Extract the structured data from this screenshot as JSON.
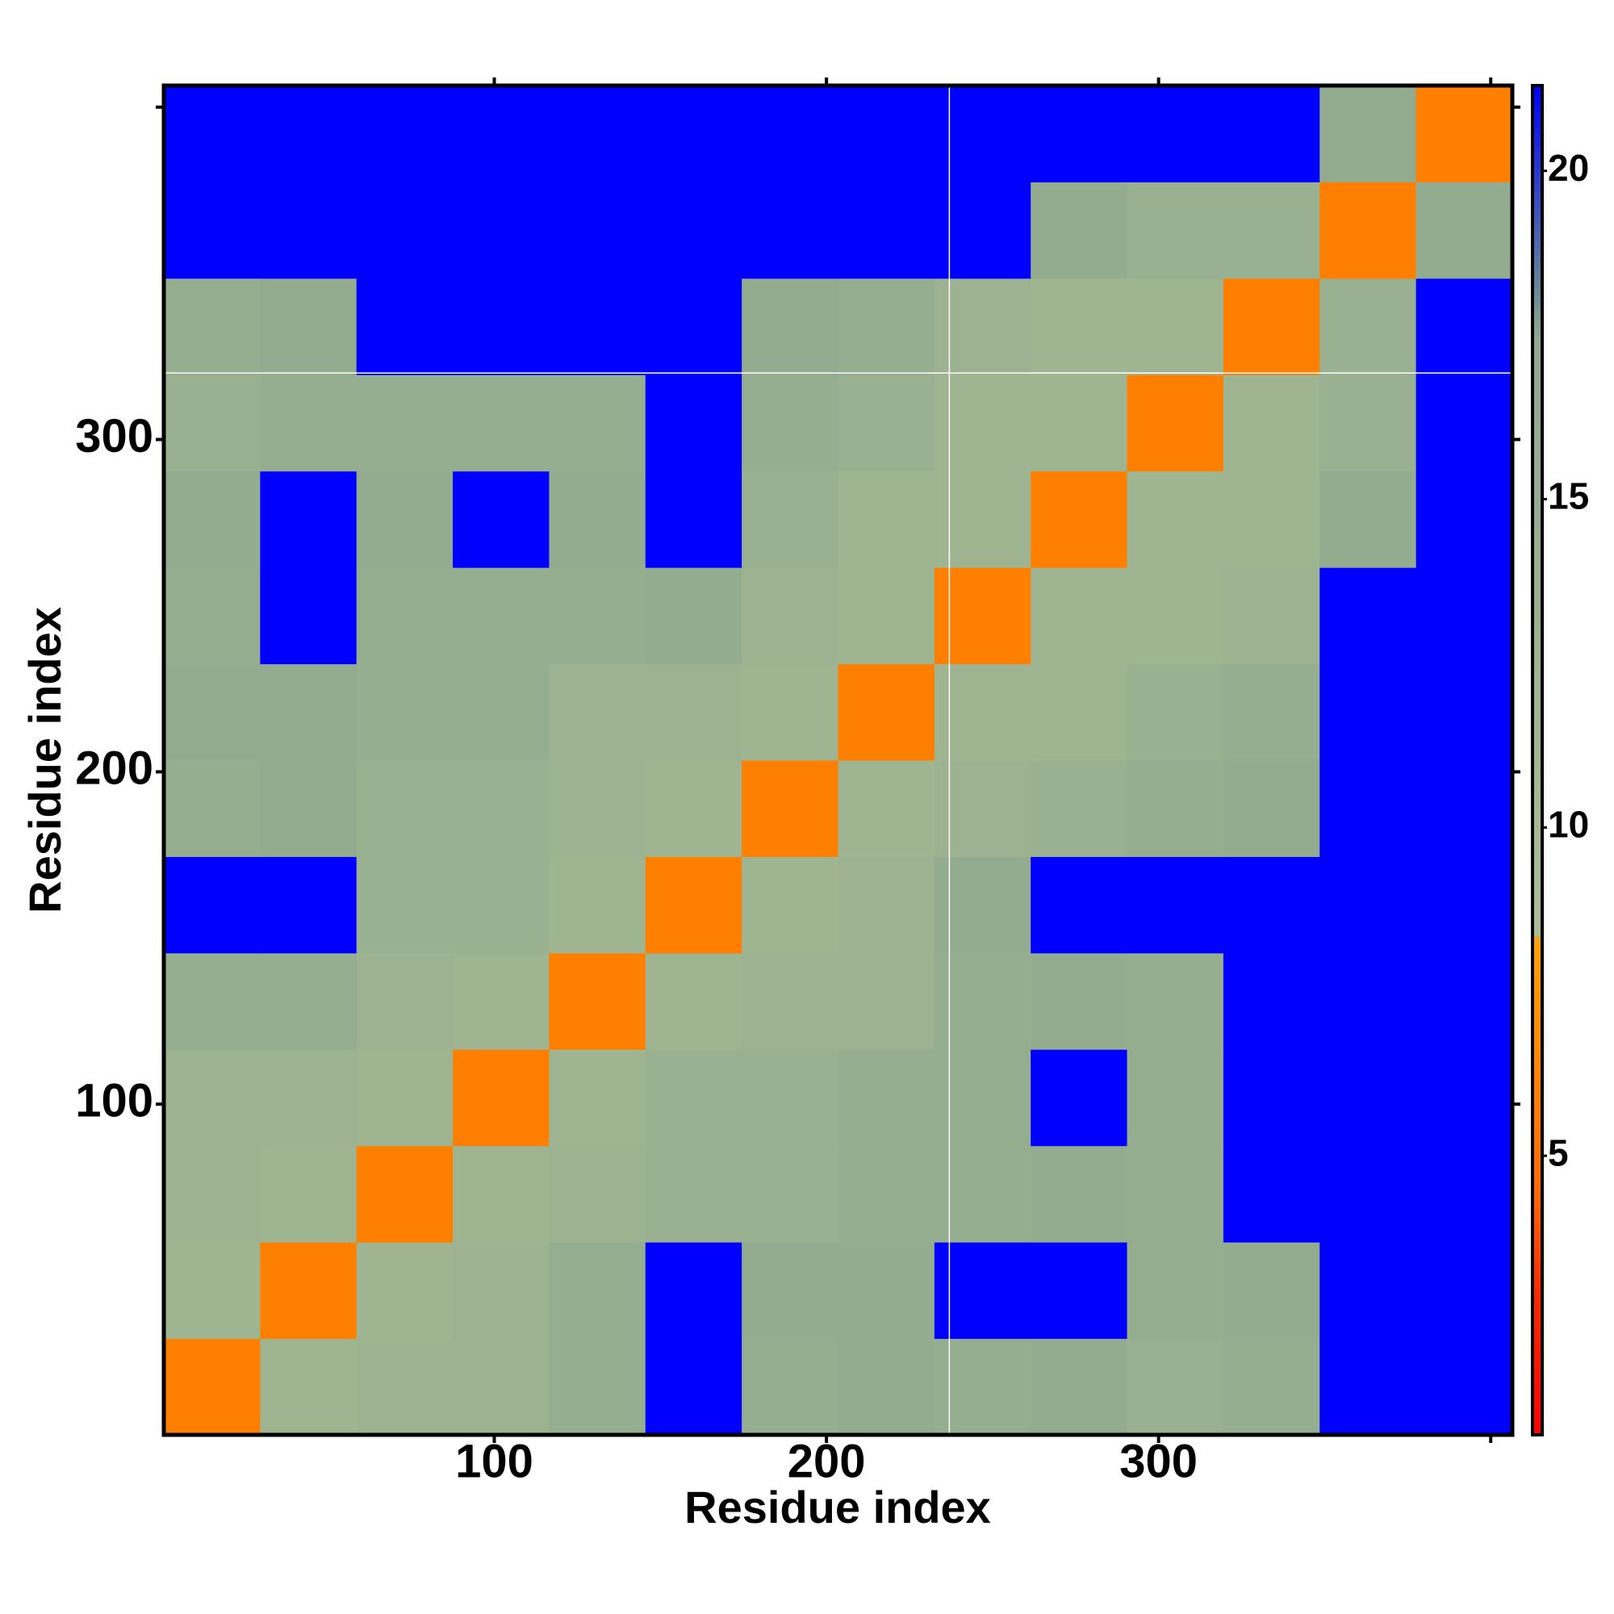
{
  "chart_data": {
    "type": "heatmap",
    "xlabel": "Residue index",
    "ylabel": "Residue index",
    "xbins": [
      0.5,
      29.5,
      58.5,
      87.5,
      116.5,
      145.5,
      174.5,
      203.5,
      232.5,
      261.5,
      290.5,
      319.5,
      348.5,
      377.5,
      406.5
    ],
    "ybins": [
      0.5,
      29.5,
      58.5,
      87.5,
      116.5,
      145.5,
      174.5,
      203.5,
      232.5,
      261.5,
      290.5,
      319.5,
      348.5,
      377.5,
      406.5
    ],
    "z": [
      [
        6,
        12,
        13,
        13,
        15,
        22,
        15,
        16,
        15,
        16,
        14,
        15,
        22,
        22
      ],
      [
        12,
        6,
        12,
        13,
        15,
        22,
        16,
        16,
        22,
        22,
        15,
        16,
        22,
        22
      ],
      [
        13,
        12,
        6,
        12,
        13,
        14,
        14,
        15,
        15,
        16,
        15,
        22,
        22,
        22
      ],
      [
        13,
        13,
        12,
        6,
        12,
        14,
        14,
        15,
        15,
        22,
        15,
        22,
        22,
        22
      ],
      [
        15,
        15,
        13,
        12,
        6,
        12,
        13,
        13,
        15,
        16,
        15,
        22,
        22,
        22
      ],
      [
        22,
        22,
        14,
        14,
        12,
        6,
        12,
        13,
        16,
        22,
        22,
        22,
        22,
        22
      ],
      [
        15,
        16,
        14,
        14,
        13,
        12,
        6,
        12,
        13,
        14,
        15,
        16,
        22,
        22
      ],
      [
        16,
        16,
        15,
        15,
        13,
        13,
        12,
        6,
        12,
        12,
        14,
        15,
        22,
        22
      ],
      [
        15,
        22,
        15,
        15,
        15,
        16,
        13,
        12,
        6,
        12,
        12,
        13,
        22,
        22
      ],
      [
        16,
        22,
        16,
        22,
        16,
        22,
        14,
        12,
        12,
        6,
        12,
        12,
        16,
        22
      ],
      [
        14,
        15,
        15,
        15,
        15,
        22,
        15,
        14,
        12,
        12,
        6,
        12,
        14,
        22
      ],
      [
        15,
        16,
        22,
        22,
        22,
        22,
        16,
        15,
        13,
        12,
        12,
        6,
        14,
        22
      ],
      [
        22,
        22,
        22,
        22,
        22,
        22,
        22,
        22,
        22,
        16,
        14,
        14,
        6,
        16
      ],
      [
        22,
        22,
        22,
        22,
        22,
        22,
        22,
        22,
        22,
        22,
        22,
        22,
        16,
        6
      ]
    ],
    "xlim": [
      0.5,
      406.5
    ],
    "ylim": [
      0.5,
      406.5
    ],
    "xticks": [
      100,
      200,
      300
    ],
    "yticks": [
      100,
      200,
      300
    ],
    "xticks_minor": [
      400
    ],
    "yticks_minor": [
      400
    ],
    "vlines": [
      237
    ],
    "hlines": [
      320
    ],
    "line_color": "#ffffff",
    "clim": [
      0.75,
      21.3
    ],
    "cticks": [
      5,
      10,
      15,
      20
    ],
    "colorscale": [
      [
        0.75,
        "#ff0000"
      ],
      [
        3,
        "#ff2a00"
      ],
      [
        4.5,
        "#ff6a00"
      ],
      [
        8.3,
        "#ffa000"
      ],
      [
        8.31,
        "#a9bd95"
      ],
      [
        17.5,
        "#8fa88e"
      ],
      [
        18.5,
        "#5a7aa0"
      ],
      [
        21.3,
        "#0000ff"
      ]
    ]
  }
}
